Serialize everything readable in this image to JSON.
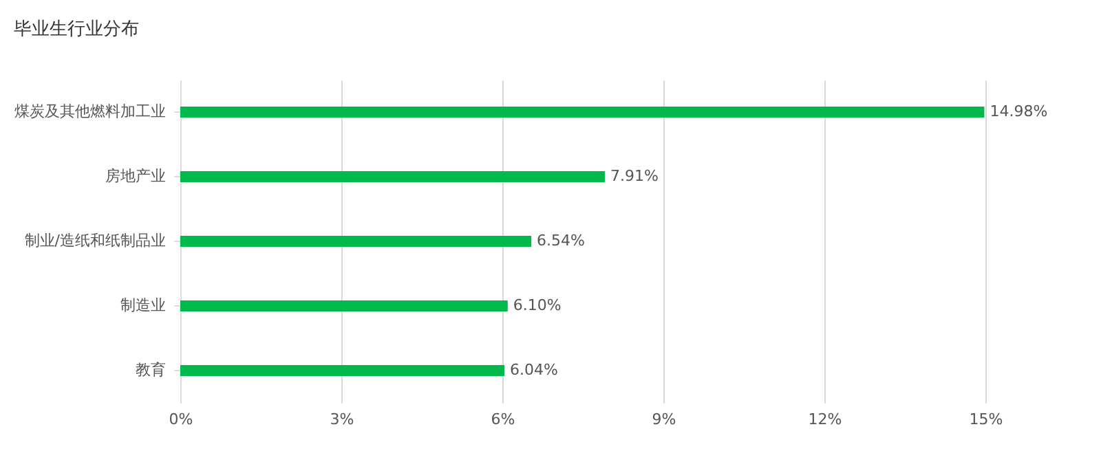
{
  "chart_data": {
    "type": "bar",
    "orientation": "horizontal",
    "title": "毕业生行业分布",
    "categories": [
      "煤炭及其他燃料加工业",
      "房地产业",
      "制业/造纸和纸制品业",
      "制造业",
      "教育"
    ],
    "values": [
      14.98,
      7.91,
      6.54,
      6.1,
      6.04
    ],
    "value_labels": [
      "14.98%",
      "7.91%",
      "6.54%",
      "6.10%",
      "6.04%"
    ],
    "color": "#00b84c",
    "xlim": [
      0,
      15
    ],
    "xticks": [
      {
        "value": 0,
        "label": "0%"
      },
      {
        "value": 3,
        "label": "3%"
      },
      {
        "value": 6,
        "label": "6%"
      },
      {
        "value": 9,
        "label": "9%"
      },
      {
        "value": 12,
        "label": "12%"
      },
      {
        "value": 15,
        "label": "15%"
      }
    ],
    "grid": "x"
  }
}
